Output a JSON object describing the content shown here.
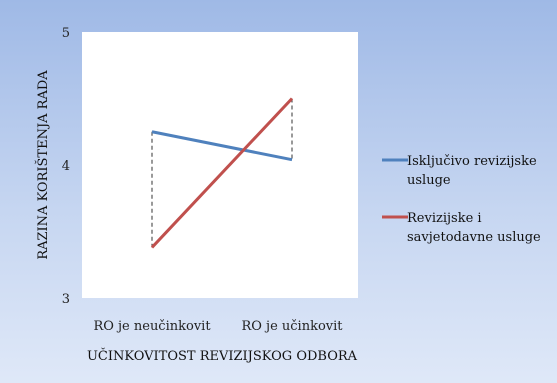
{
  "chart_data": {
    "type": "line",
    "title": "",
    "xlabel": "UČINKOVITOST REVIZIJSKOG ODBORA",
    "ylabel": "RAZINA KORIŠTENJA RADA",
    "categories": [
      "RO je neučinkovit",
      "RO je učinkovit"
    ],
    "ylim": [
      3,
      5
    ],
    "yticks": [
      "3",
      "4",
      "5"
    ],
    "grid": false,
    "legend_position": "right",
    "series": [
      {
        "name_lines": [
          "Isključivo revizijske",
          "usluge"
        ],
        "values": [
          4.25,
          4.04
        ],
        "color": "#4f81bd"
      },
      {
        "name_lines": [
          "Revizijske i",
          "savjetodavne usluge"
        ],
        "values": [
          3.38,
          4.5
        ],
        "color": "#c0504d"
      }
    ],
    "annotations": [
      {
        "type": "dashed-drop",
        "category_index": 0,
        "from": 4.25,
        "to": 3.38
      },
      {
        "type": "dashed-drop",
        "category_index": 1,
        "from": 4.5,
        "to": 4.04
      }
    ]
  }
}
